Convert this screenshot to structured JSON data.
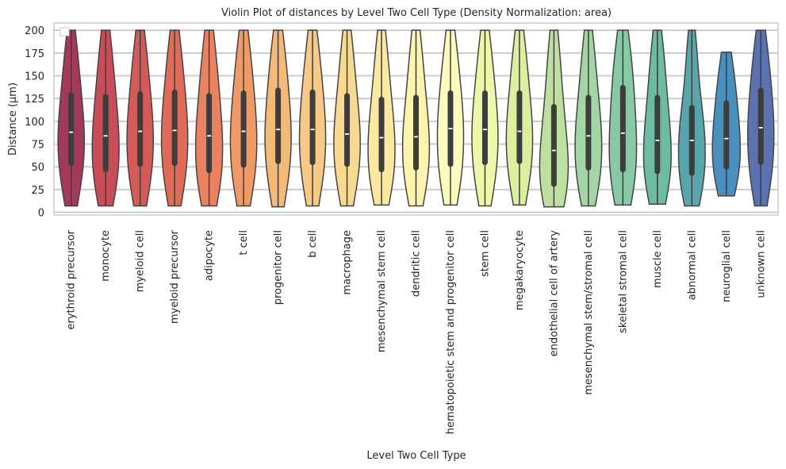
{
  "chart_data": {
    "type": "violin",
    "title": "Violin Plot of distances by Level Two Cell Type (Density Normalization: area)",
    "xlabel": "Level Two Cell Type",
    "ylabel": "Distance (µm)",
    "ylim": [
      -3,
      208
    ],
    "yticks": [
      0,
      25,
      50,
      75,
      100,
      125,
      150,
      175,
      200
    ],
    "grid": true,
    "legend": "top-left (empty)",
    "categories": [
      {
        "name": "erythroid precursor",
        "color": "#a33a5a",
        "min": 7,
        "max": 200,
        "q1": 54,
        "median": 88,
        "q3": 129
      },
      {
        "name": "monocyte",
        "color": "#c84d58",
        "min": 7,
        "max": 200,
        "q1": 47,
        "median": 84,
        "q3": 127
      },
      {
        "name": "myeloid cell",
        "color": "#d45b57",
        "min": 7,
        "max": 200,
        "q1": 53,
        "median": 89,
        "q3": 130
      },
      {
        "name": "myeloid precursor",
        "color": "#e06b56",
        "min": 7,
        "max": 200,
        "q1": 54,
        "median": 90,
        "q3": 132
      },
      {
        "name": "adipocyte",
        "color": "#ea8160",
        "min": 7,
        "max": 200,
        "q1": 46,
        "median": 84,
        "q3": 128
      },
      {
        "name": "t cell",
        "color": "#f09a68",
        "min": 7,
        "max": 200,
        "q1": 52,
        "median": 89,
        "q3": 131
      },
      {
        "name": "progenitor cell",
        "color": "#f4b877",
        "min": 6,
        "max": 200,
        "q1": 56,
        "median": 91,
        "q3": 134
      },
      {
        "name": "b cell",
        "color": "#f7c986",
        "min": 7,
        "max": 200,
        "q1": 55,
        "median": 91,
        "q3": 132
      },
      {
        "name": "macrophage",
        "color": "#f9d992",
        "min": 7,
        "max": 200,
        "q1": 53,
        "median": 86,
        "q3": 128
      },
      {
        "name": "mesenchymal stem cell",
        "color": "#fbe8a1",
        "min": 8,
        "max": 200,
        "q1": 47,
        "median": 82,
        "q3": 124
      },
      {
        "name": "dendritic cell",
        "color": "#fcf3ad",
        "min": 7,
        "max": 200,
        "q1": 49,
        "median": 83,
        "q3": 126
      },
      {
        "name": "hematopoietic stem and progenitor cell",
        "color": "#fdfbbd",
        "min": 8,
        "max": 200,
        "q1": 53,
        "median": 92,
        "q3": 131
      },
      {
        "name": "stem cell",
        "color": "#eef6a9",
        "min": 7,
        "max": 200,
        "q1": 55,
        "median": 91,
        "q3": 131
      },
      {
        "name": "megakaryocyte",
        "color": "#dbef9f",
        "min": 8,
        "max": 200,
        "q1": 56,
        "median": 89,
        "q3": 131
      },
      {
        "name": "endothelial cell of artery",
        "color": "#bde0a0",
        "min": 6,
        "max": 200,
        "q1": 31,
        "median": 68,
        "q3": 116
      },
      {
        "name": "mesenchymal stem/stromal cell",
        "color": "#a3d6a4",
        "min": 7,
        "max": 200,
        "q1": 49,
        "median": 84,
        "q3": 126
      },
      {
        "name": "skeletal stromal cell",
        "color": "#86c9a4",
        "min": 8,
        "max": 200,
        "q1": 47,
        "median": 87,
        "q3": 137
      },
      {
        "name": "muscle cell",
        "color": "#6cbca4",
        "min": 9,
        "max": 200,
        "q1": 45,
        "median": 79,
        "q3": 126
      },
      {
        "name": "abnormal cell",
        "color": "#58a6ab",
        "min": 7,
        "max": 200,
        "q1": 43,
        "median": 79,
        "q3": 115
      },
      {
        "name": "neuroglial cell",
        "color": "#4a8fbd",
        "min": 18,
        "max": 176,
        "q1": 50,
        "median": 81,
        "q3": 120
      },
      {
        "name": "unknown cell",
        "color": "#5b71b0",
        "min": 7,
        "max": 200,
        "q1": 55,
        "median": 93,
        "q3": 134
      }
    ]
  }
}
